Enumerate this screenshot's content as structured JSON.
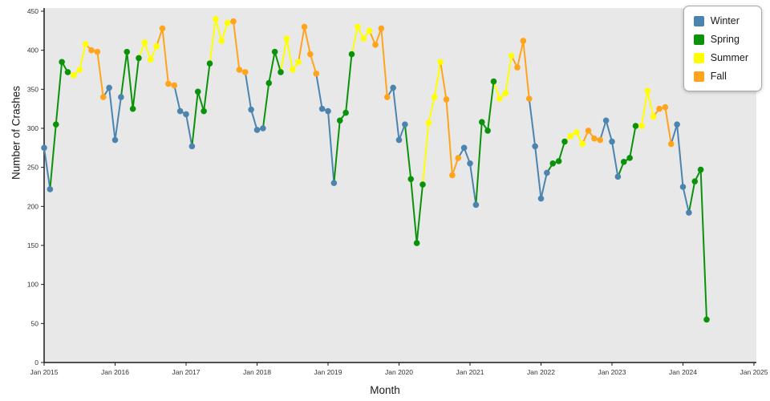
{
  "chart_data": {
    "type": "line",
    "title": "",
    "xlabel": "Month",
    "ylabel": "Number of Crashes",
    "ylim": [
      0,
      450
    ],
    "xlim_months": [
      0,
      120
    ],
    "grid": false,
    "plot_bg": "#e8e8e8",
    "axis_color": "#1a1a1a",
    "tick_label_color": "#333333",
    "x_ticks": [
      "Jan 2015",
      "Jan 2016",
      "Jan 2017",
      "Jan 2018",
      "Jan 2019",
      "Jan 2020",
      "Jan 2021",
      "Jan 2022",
      "Jan 2023",
      "Jan 2024",
      "Jan 2025"
    ],
    "y_ticks": [
      0,
      50,
      100,
      150,
      200,
      250,
      300,
      350,
      400,
      450
    ],
    "legend_position": "top-right",
    "legend": [
      {
        "label": "Winter",
        "color": "#4c84b0"
      },
      {
        "label": "Spring",
        "color": "#0a930a"
      },
      {
        "label": "Summer",
        "color": "#ffff00"
      },
      {
        "label": "Fall",
        "color": "#ffa41b"
      }
    ],
    "season_colors": {
      "Winter": "#4c84b0",
      "Spring": "#0a930a",
      "Summer": "#ffff00",
      "Fall": "#ffa41b"
    },
    "season_of_month": [
      "Winter",
      "Winter",
      "Spring",
      "Spring",
      "Spring",
      "Summer",
      "Summer",
      "Summer",
      "Fall",
      "Fall",
      "Fall",
      "Winter"
    ],
    "start_month": "Jan 2015",
    "values": [
      275,
      222,
      305,
      385,
      372,
      368,
      375,
      408,
      400,
      398,
      340,
      352,
      285,
      340,
      398,
      325,
      390,
      410,
      388,
      405,
      428,
      357,
      355,
      322,
      318,
      277,
      347,
      322,
      383,
      440,
      412,
      435,
      437,
      375,
      372,
      324,
      298,
      300,
      358,
      398,
      372,
      415,
      375,
      385,
      430,
      395,
      370,
      325,
      322,
      230,
      310,
      320,
      395,
      430,
      415,
      425,
      407,
      428,
      340,
      352,
      285,
      305,
      235,
      153,
      228,
      307,
      340,
      385,
      337,
      240,
      262,
      275,
      255,
      202,
      308,
      297,
      360,
      338,
      345,
      393,
      378,
      412,
      338,
      277,
      210,
      243,
      255,
      258,
      283,
      290,
      295,
      280,
      297,
      287,
      285,
      310,
      283,
      238,
      257,
      262,
      303,
      303,
      348,
      315,
      325,
      327,
      280,
      305,
      225,
      192,
      232,
      247,
      55
    ]
  }
}
